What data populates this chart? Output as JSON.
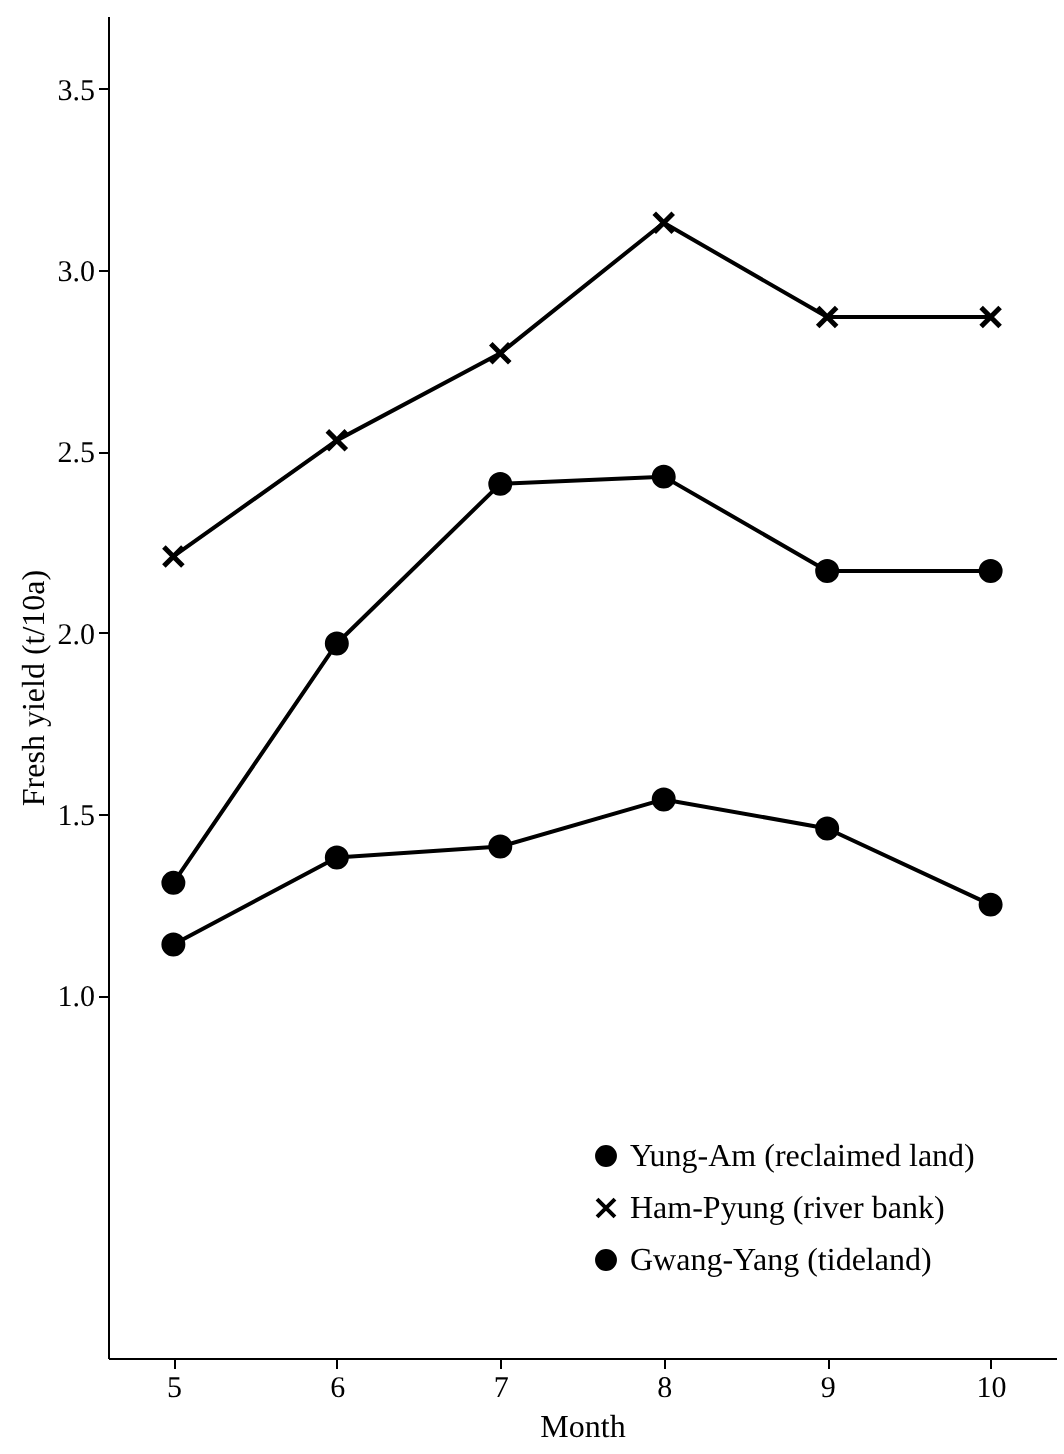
{
  "chart_data": {
    "type": "line",
    "xlabel": "Month",
    "ylabel": "Fresh yield (t/10a)",
    "x": [
      5,
      6,
      7,
      8,
      9,
      10
    ],
    "xlim": [
      4.6,
      10.4
    ],
    "xticks": [
      5,
      6,
      7,
      8,
      9,
      10
    ],
    "ylim": [
      0,
      3.7
    ],
    "yticks": [
      {
        "value": 1.0,
        "label": "1.0"
      },
      1.5,
      {
        "value": 2.0,
        "label": "2.0"
      },
      2.5,
      {
        "value": 3.0,
        "label": "3.0"
      },
      3.5
    ],
    "grid": false,
    "legend": "bottom right",
    "line_style": "solid",
    "series": [
      {
        "name": "Yung-Am (reclaimed land)",
        "color": "#000000",
        "marker": "circle",
        "values": [
          1.14,
          1.38,
          1.41,
          1.54,
          1.46,
          1.25
        ]
      },
      {
        "name": "Ham-Pyung (river bank)",
        "color": "#000000",
        "marker": "cross",
        "values": [
          2.21,
          2.53,
          2.77,
          3.13,
          2.87,
          2.87
        ]
      },
      {
        "name": "Gwang-Yang (tideland)",
        "color": "#000000",
        "marker": "circle",
        "values": [
          1.31,
          1.97,
          2.41,
          2.43,
          2.17,
          2.17
        ]
      }
    ]
  }
}
